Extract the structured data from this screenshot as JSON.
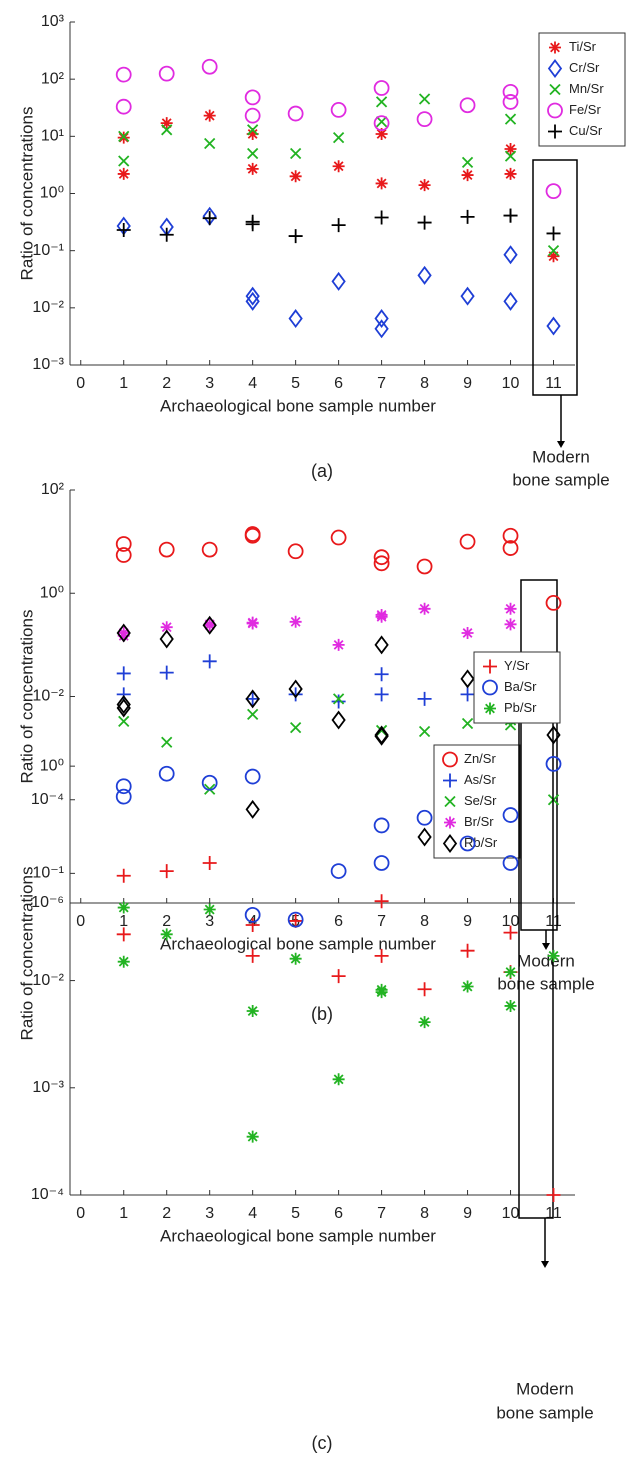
{
  "chart_data": [
    {
      "type": "scatter",
      "y_label": "Ratio of concentrations",
      "x_label": "Archaeological bone sample number",
      "caption": "(a)",
      "annotation": [
        "Modern",
        "bone sample"
      ],
      "yscale": "log",
      "legend": "upper right",
      "xlim": [
        -0.25,
        11.5
      ],
      "xticks": [
        0,
        1,
        2,
        3,
        4,
        5,
        6,
        7,
        8,
        9,
        10,
        11
      ],
      "ylim": [
        0.001,
        1000
      ],
      "yticks": [
        {
          "value": 0.001,
          "label": "10⁻³"
        },
        {
          "value": 0.01,
          "label": "10⁻²"
        },
        {
          "value": 0.1,
          "label": "10⁻¹"
        },
        {
          "value": 1,
          "label": "10⁰"
        },
        {
          "value": 10,
          "label": "10¹"
        },
        {
          "value": 100,
          "label": "10²"
        },
        {
          "value": 1000,
          "label": "10³"
        }
      ],
      "series": [
        {
          "name": "Ti/Sr",
          "color": "#e8191b",
          "marker": "asterisk",
          "x": [
            1,
            1,
            2,
            3,
            4,
            4,
            5,
            6,
            7,
            7,
            8,
            9,
            10,
            10,
            11
          ],
          "values": [
            9.5,
            2.2,
            17,
            23,
            11,
            2.7,
            2,
            3,
            11,
            1.5,
            1.4,
            2.1,
            6,
            2.2,
            0.08
          ]
        },
        {
          "name": "Cr/Sr",
          "color": "#1f3fd6",
          "marker": "diamond",
          "x": [
            1,
            2,
            3,
            4,
            4,
            5,
            6,
            7,
            7,
            8,
            9,
            10,
            10,
            11
          ],
          "values": [
            0.27,
            0.26,
            0.4,
            0.016,
            0.013,
            0.0065,
            0.029,
            0.0065,
            0.0043,
            0.037,
            0.016,
            0.085,
            0.013,
            0.0048
          ]
        },
        {
          "name": "Mn/Sr",
          "color": "#22b322",
          "marker": "cross",
          "x": [
            1,
            1,
            2,
            3,
            4,
            4,
            5,
            6,
            7,
            7,
            8,
            9,
            10,
            10,
            11
          ],
          "values": [
            10,
            3.7,
            13,
            7.5,
            13,
            5,
            5,
            9.5,
            40,
            18,
            45,
            3.5,
            20,
            4.5,
            0.1
          ]
        },
        {
          "name": "Fe/Sr",
          "color": "#e02be0",
          "marker": "circle",
          "x": [
            1,
            1,
            2,
            3,
            4,
            4,
            5,
            6,
            7,
            7,
            8,
            9,
            10,
            10,
            11
          ],
          "values": [
            120,
            33,
            125,
            165,
            48,
            23,
            25,
            29,
            70,
            17,
            20,
            35,
            60,
            40,
            1.1
          ]
        },
        {
          "name": "Cu/Sr",
          "color": "#000000",
          "marker": "plus",
          "x": [
            1,
            2,
            3,
            4,
            4,
            5,
            6,
            7,
            8,
            9,
            10,
            10,
            11
          ],
          "values": [
            0.23,
            0.19,
            0.37,
            0.32,
            0.29,
            0.18,
            0.28,
            0.38,
            0.31,
            0.39,
            0.41,
            0.41,
            0.2
          ]
        }
      ]
    },
    {
      "type": "scatter",
      "y_label": "Ratio of concentrations",
      "x_label": "Archaeological bone sample number",
      "caption": "(b)",
      "annotation": [
        "Modern",
        "bone sample"
      ],
      "yscale": "log",
      "legend": "lower right",
      "xlim": [
        -0.25,
        11.5
      ],
      "xticks": [
        0,
        1,
        2,
        3,
        4,
        5,
        6,
        7,
        8,
        9,
        10,
        11
      ],
      "ylim": [
        1e-06,
        100
      ],
      "yticks": [
        {
          "value": 1e-06,
          "label": "10⁻⁶"
        },
        {
          "value": 0.0001,
          "label": "10⁻⁴"
        },
        {
          "value": 0.01,
          "label": "10⁻²"
        },
        {
          "value": 1,
          "label": "10⁰"
        },
        {
          "value": 100,
          "label": "10²"
        }
      ],
      "series": [
        {
          "name": "Zn/Sr",
          "color": "#e8191b",
          "marker": "circle",
          "x": [
            1,
            1,
            2,
            3,
            4,
            4,
            5,
            6,
            7,
            7,
            8,
            9,
            10,
            10,
            11
          ],
          "values": [
            9,
            5.5,
            7,
            7,
            14,
            13,
            6.5,
            12,
            5,
            3.8,
            3.3,
            10,
            13,
            7.5,
            0.65
          ]
        },
        {
          "name": "As/Sr",
          "color": "#1f3fd6",
          "marker": "plus",
          "x": [
            1,
            1,
            2,
            3,
            4,
            5,
            6,
            7,
            7,
            8,
            9,
            10,
            10,
            11
          ],
          "values": [
            0.028,
            0.011,
            0.029,
            0.048,
            0.009,
            0.011,
            0.008,
            0.027,
            0.011,
            0.009,
            0.011,
            0.025,
            0.013,
            0.0055
          ]
        },
        {
          "name": "Se/Sr",
          "color": "#22b322",
          "marker": "cross",
          "x": [
            1,
            2,
            3,
            4,
            5,
            6,
            7,
            8,
            9,
            10,
            10,
            11
          ],
          "values": [
            0.0033,
            0.0013,
            0.00016,
            0.0045,
            0.0025,
            0.009,
            0.0022,
            0.0021,
            0.003,
            0.0035,
            0.0028,
            0.0001
          ]
        },
        {
          "name": "Br/Sr",
          "color": "#e02be0",
          "marker": "asterisk",
          "x": [
            1,
            1,
            2,
            3,
            3,
            4,
            4,
            5,
            6,
            7,
            7,
            8,
            9,
            10,
            10,
            11
          ],
          "values": [
            0.17,
            0.15,
            0.22,
            0.25,
            0.24,
            0.27,
            0.26,
            0.28,
            0.1,
            0.38,
            0.35,
            0.5,
            0.17,
            0.5,
            0.25,
            0.023
          ]
        },
        {
          "name": "Rb/Sr",
          "color": "#000000",
          "marker": "diamond",
          "x": [
            1,
            1,
            1,
            2,
            3,
            4,
            4,
            5,
            6,
            7,
            7,
            7,
            8,
            9,
            10,
            10,
            11
          ],
          "values": [
            0.17,
            0.007,
            0.006,
            0.13,
            0.24,
            0.009,
            6.5e-05,
            0.014,
            0.0035,
            0.1,
            0.0018,
            0.0017,
            1.9e-05,
            0.022,
            0.04,
            0.009,
            0.0018
          ]
        }
      ]
    },
    {
      "type": "scatter",
      "y_label": "Ratio of concentrations",
      "x_label": "Archaeological bone sample number",
      "caption": "(c)",
      "annotation": [
        "Modern",
        "bone sample"
      ],
      "yscale": "log",
      "legend": "upper right",
      "xlim": [
        -0.25,
        11.5
      ],
      "xticks": [
        0,
        1,
        2,
        3,
        4,
        5,
        6,
        7,
        8,
        9,
        10,
        11
      ],
      "ylim": [
        0.0001,
        3.2
      ],
      "yticks": [
        {
          "value": 0.0001,
          "label": "10⁻⁴"
        },
        {
          "value": 0.001,
          "label": "10⁻³"
        },
        {
          "value": 0.01,
          "label": "10⁻²"
        },
        {
          "value": 0.1,
          "label": "10⁻¹"
        },
        {
          "value": 1,
          "label": "10⁰"
        }
      ],
      "series": [
        {
          "name": "Y/Sr",
          "color": "#e8191b",
          "marker": "plus",
          "x": [
            1,
            1,
            2,
            3,
            4,
            4,
            5,
            6,
            7,
            7,
            8,
            9,
            10,
            10,
            11
          ],
          "values": [
            0.095,
            0.027,
            0.105,
            0.125,
            0.033,
            0.017,
            0.036,
            0.011,
            0.055,
            0.017,
            0.0083,
            0.019,
            0.028,
            0.012,
            0.0001
          ]
        },
        {
          "name": "Ba/Sr",
          "color": "#1f3fd6",
          "marker": "circle",
          "x": [
            1,
            1,
            2,
            3,
            4,
            4,
            5,
            6,
            7,
            7,
            8,
            9,
            10,
            10,
            11
          ],
          "values": [
            0.65,
            0.52,
            0.85,
            0.7,
            0.8,
            0.041,
            0.037,
            0.105,
            0.28,
            0.125,
            0.33,
            0.19,
            0.35,
            0.125,
            1.05
          ]
        },
        {
          "name": "Pb/Sr",
          "color": "#22b322",
          "marker": "asterisk",
          "x": [
            1,
            1,
            2,
            3,
            4,
            4,
            5,
            6,
            7,
            7,
            8,
            9,
            10,
            10,
            11
          ],
          "values": [
            0.048,
            0.015,
            0.027,
            0.046,
            0.0052,
            0.00035,
            0.016,
            0.0012,
            0.0082,
            0.0078,
            0.0041,
            0.0088,
            0.012,
            0.0058,
            0.017
          ]
        }
      ]
    }
  ]
}
